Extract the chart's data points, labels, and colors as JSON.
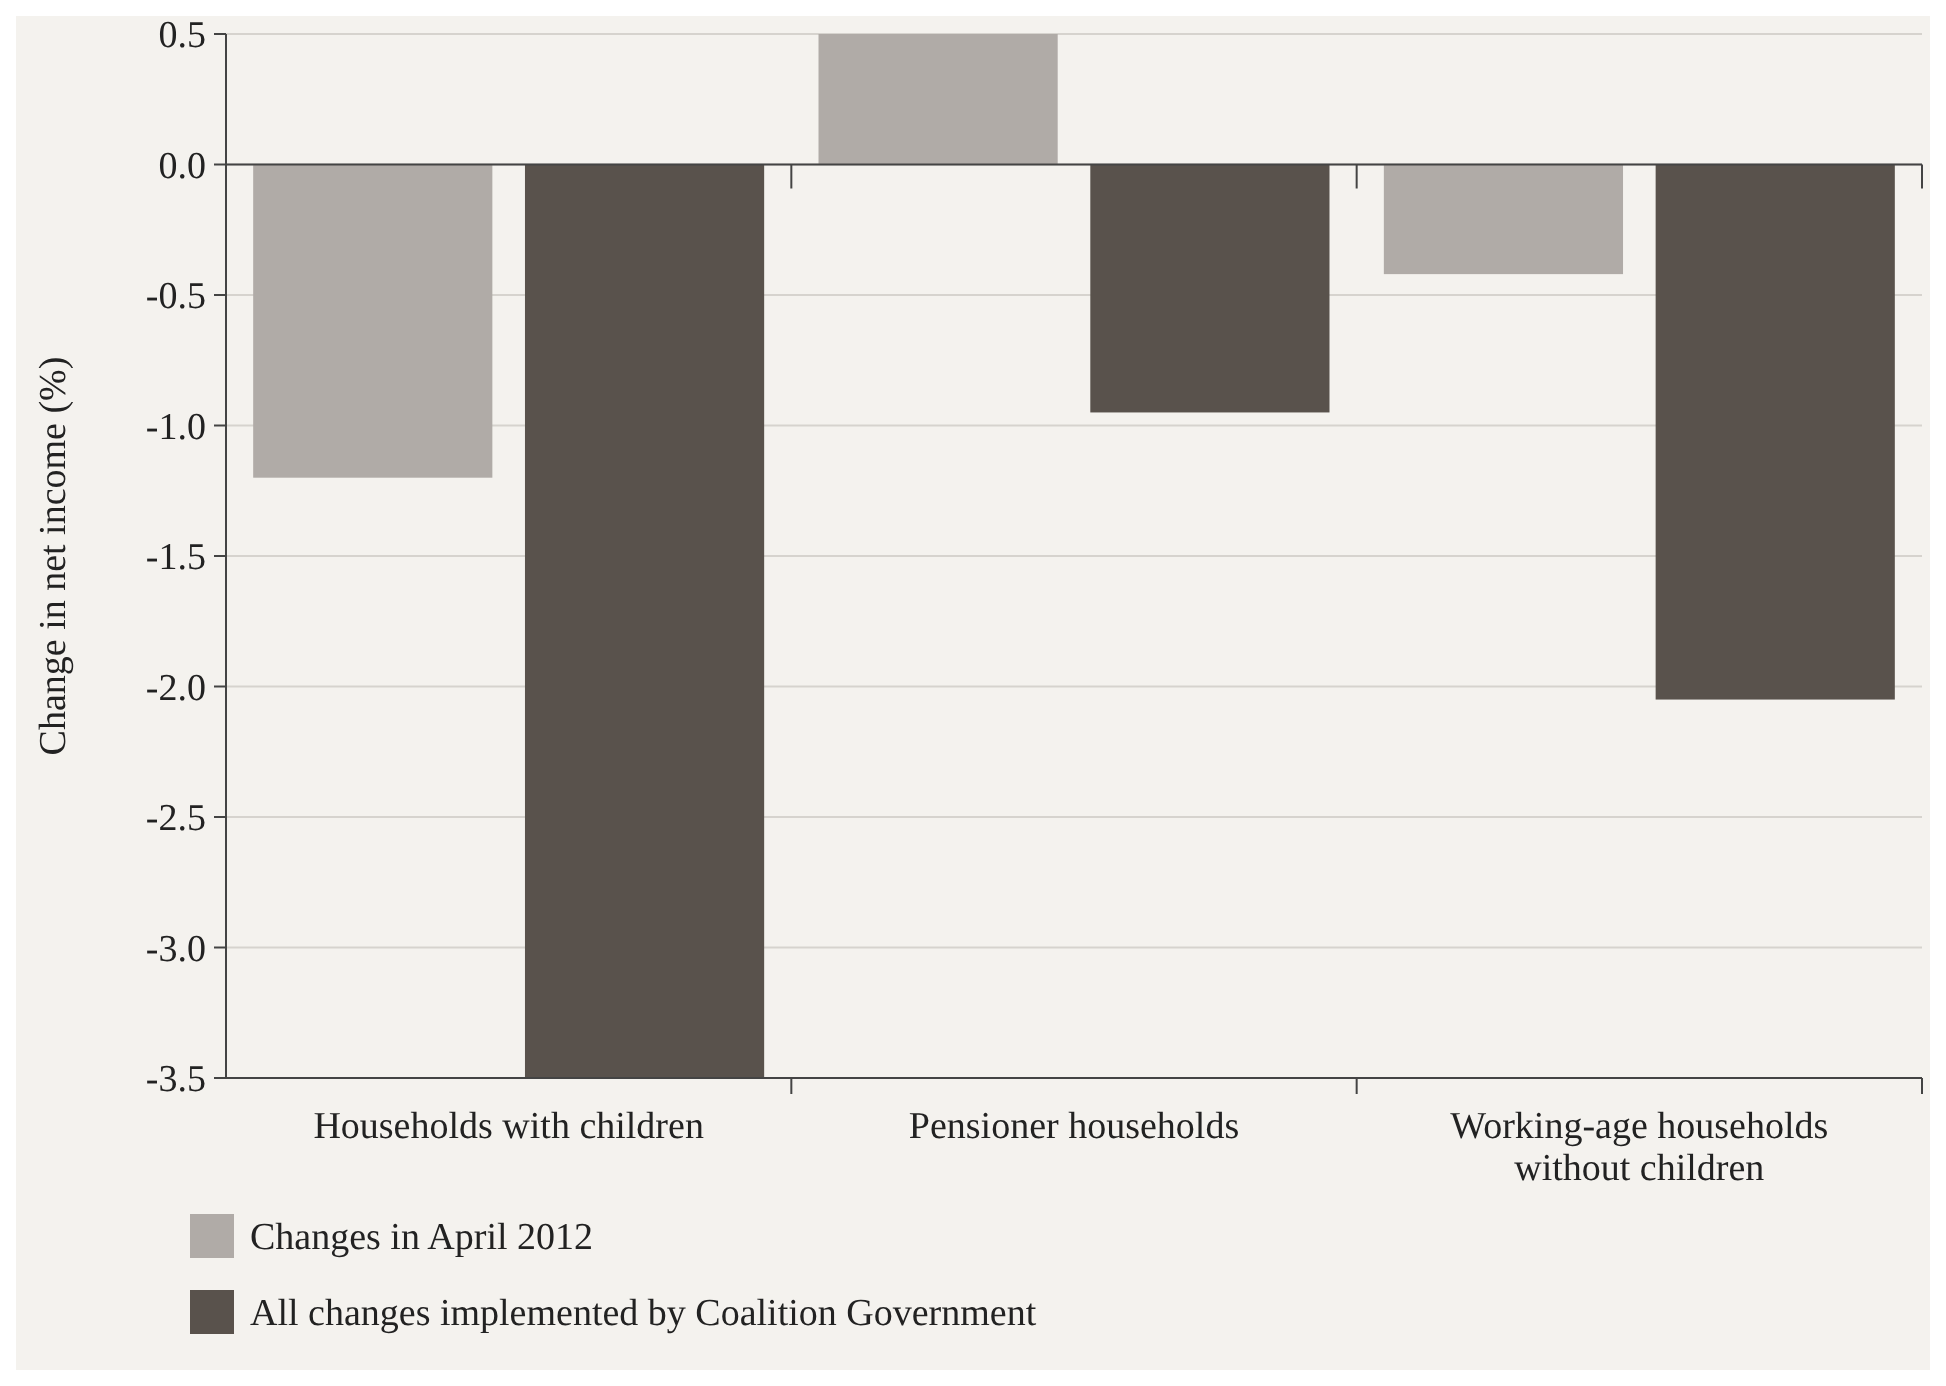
{
  "chart_data": {
    "type": "bar",
    "ylabel": "Change in net income (%)",
    "categories": [
      "Households with children",
      "Pensioner households",
      "Working-age households without children"
    ],
    "series": [
      {
        "name": "Changes in April 2012",
        "color": "#b0aba7",
        "values": [
          -1.2,
          0.5,
          -0.42
        ]
      },
      {
        "name": "All changes implemented by Coalition Government",
        "color": "#59524c",
        "values": [
          -3.5,
          -0.95,
          -2.05
        ]
      }
    ],
    "ylim": [
      -3.5,
      0.5
    ],
    "yticks": [
      {
        "value": 0.5,
        "label": "0.5"
      },
      {
        "value": 0,
        "label": "0.0"
      },
      {
        "value": -0.5,
        "label": "-0.5"
      },
      {
        "value": -1,
        "label": "-1.0"
      },
      {
        "value": -1.5,
        "label": "-1.5"
      },
      {
        "value": -2,
        "label": "-2.0"
      },
      {
        "value": -2.5,
        "label": "-2.5"
      },
      {
        "value": -3,
        "label": "-3.0"
      },
      {
        "value": -3.5,
        "label": "-3.5"
      }
    ],
    "grid": "y",
    "legend": "bottom left"
  }
}
